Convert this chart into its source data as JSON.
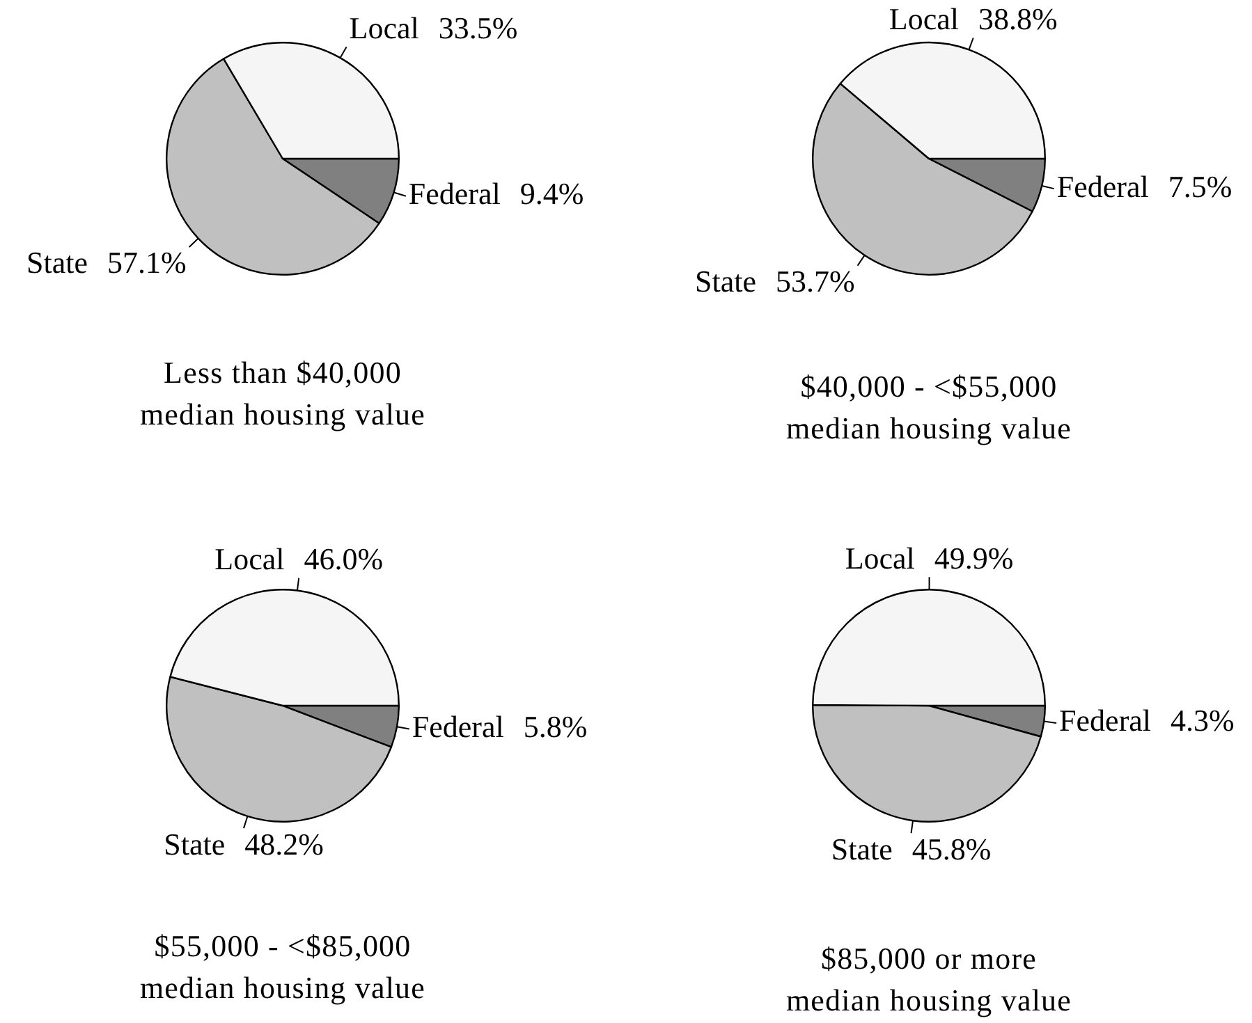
{
  "chart_data": [
    {
      "type": "pie",
      "title": "Less than $40,000\nmedian housing value",
      "categories": [
        "Federal",
        "State",
        "Local"
      ],
      "values": [
        9.4,
        57.1,
        33.5
      ],
      "colors": [
        "#808080",
        "#c0c0c0",
        "#f5f5f5"
      ],
      "value_labels": [
        "9.4%",
        "57.1%",
        "33.5%"
      ]
    },
    {
      "type": "pie",
      "title": "$40,000 - <$55,000\nmedian housing value",
      "categories": [
        "Federal",
        "State",
        "Local"
      ],
      "values": [
        7.5,
        53.7,
        38.8
      ],
      "colors": [
        "#808080",
        "#c0c0c0",
        "#f5f5f5"
      ],
      "value_labels": [
        "7.5%",
        "53.7%",
        "38.8%"
      ]
    },
    {
      "type": "pie",
      "title": "$55,000 - <$85,000\nmedian housing value",
      "categories": [
        "Federal",
        "State",
        "Local"
      ],
      "values": [
        5.8,
        48.2,
        46.0
      ],
      "colors": [
        "#808080",
        "#c0c0c0",
        "#f5f5f5"
      ],
      "value_labels": [
        "5.8%",
        "48.2%",
        "46.0%"
      ]
    },
    {
      "type": "pie",
      "title": "$85,000 or more\nmedian housing value",
      "categories": [
        "Federal",
        "State",
        "Local"
      ],
      "values": [
        4.3,
        45.8,
        49.9
      ],
      "colors": [
        "#808080",
        "#c0c0c0",
        "#f5f5f5"
      ],
      "value_labels": [
        "4.3%",
        "45.8%",
        "49.9%"
      ]
    }
  ]
}
